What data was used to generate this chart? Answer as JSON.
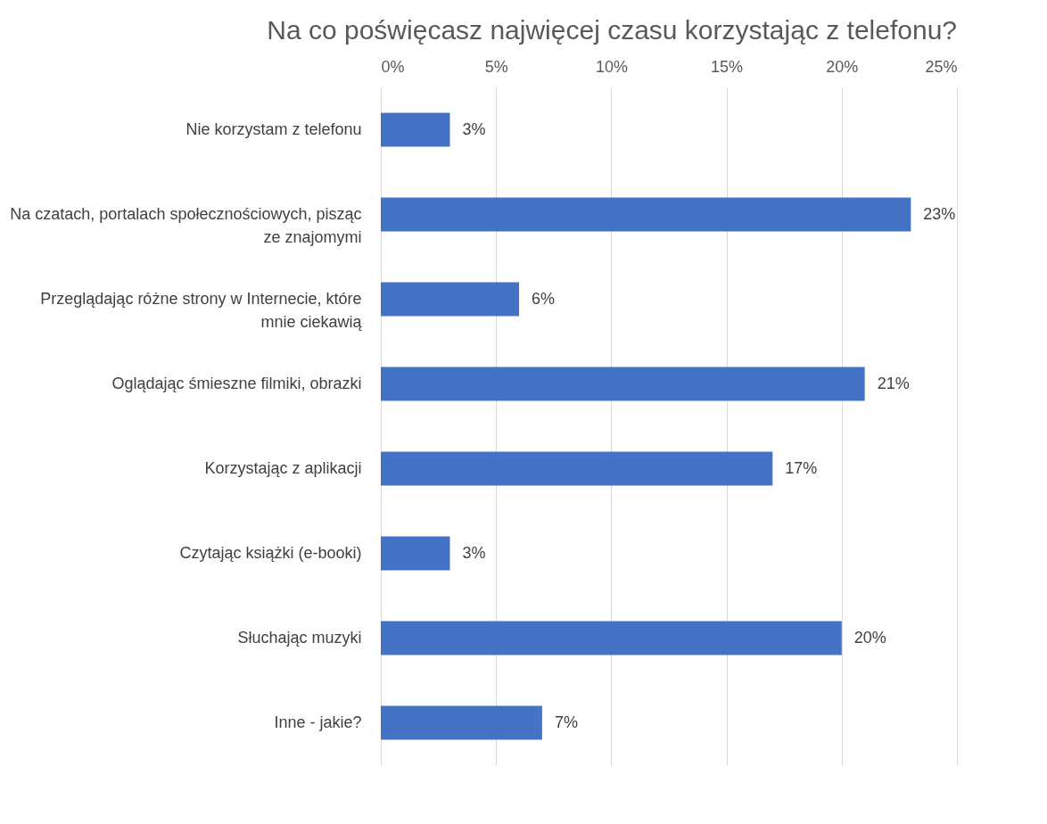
{
  "chart_data": {
    "type": "bar",
    "orientation": "horizontal",
    "title": "Na co poświęcasz najwięcej czasu korzystając z telefonu?",
    "categories": [
      "Nie korzystam z telefonu",
      "Na czatach, portalach społecznościowych, pisząc ze znajomymi",
      "Przeglądając różne strony w Internecie, które mnie ciekawią",
      "Oglądając śmieszne filmiki, obrazki",
      "Korzystając z aplikacji",
      "Czytając książki (e-booki)",
      "Słuchając muzyki",
      "Inne - jakie?"
    ],
    "values": [
      3,
      23,
      6,
      21,
      17,
      3,
      20,
      7
    ],
    "value_labels": [
      "3%",
      "23%",
      "6%",
      "21%",
      "17%",
      "3%",
      "20%",
      "7%"
    ],
    "color": "#4472c4",
    "xlim": [
      0,
      25
    ],
    "xticks": [
      {
        "value": 0,
        "label": "0%"
      },
      {
        "value": 5,
        "label": "5%"
      },
      {
        "value": 10,
        "label": "10%"
      },
      {
        "value": 15,
        "label": "15%"
      },
      {
        "value": 20,
        "label": "20%"
      },
      {
        "value": 25,
        "label": "25%"
      }
    ],
    "grid": "x"
  }
}
